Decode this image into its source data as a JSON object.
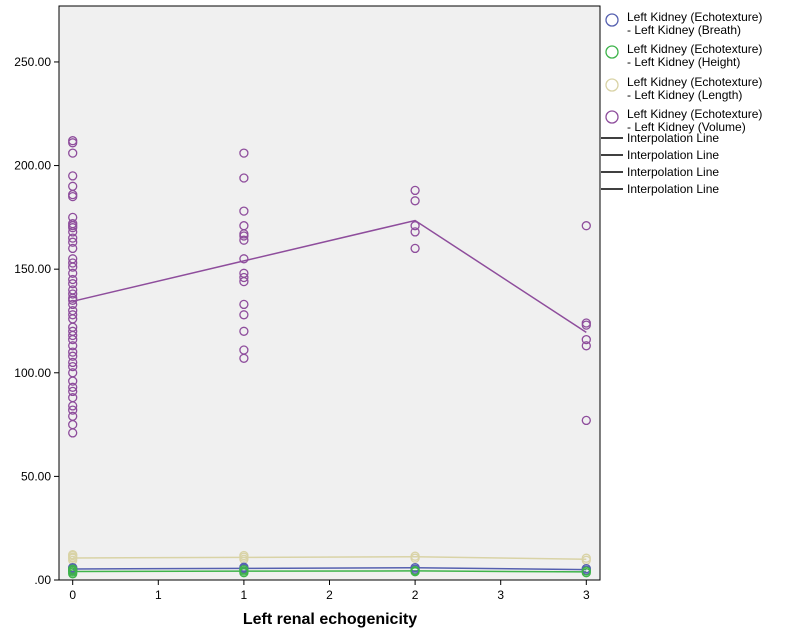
{
  "chart_data": {
    "type": "scatter",
    "title": "",
    "xlabel": "Left renal echogenicity",
    "ylabel": "",
    "x_tick_labels": [
      "0",
      "1",
      "1",
      "2",
      "2",
      "3",
      "3"
    ],
    "x_tick_values": [
      0,
      0.5,
      1,
      1.5,
      2,
      2.5,
      3
    ],
    "x_range": [
      -0.08,
      3.08
    ],
    "y_tick_labels": [
      ".00",
      "50.00",
      "100.00",
      "150.00",
      "200.00",
      "250.00"
    ],
    "y_tick_values": [
      0,
      50,
      100,
      150,
      200,
      250
    ],
    "ylim": [
      0,
      277
    ],
    "grid": false,
    "legend_position": "right",
    "series": [
      {
        "name": "Left Kidney (Echotexture) - Left Kidney (Breath)",
        "label_lines": [
          "Left Kidney (Echotexture)",
          "- Left Kidney (Breath)"
        ],
        "color": "#5560b0",
        "points": [
          [
            0,
            4.5
          ],
          [
            0,
            5
          ],
          [
            0,
            5.5
          ],
          [
            0,
            6
          ],
          [
            0,
            4.8
          ],
          [
            1,
            5
          ],
          [
            1,
            5.6
          ],
          [
            1,
            6.2
          ],
          [
            2,
            5.2
          ],
          [
            2,
            6
          ],
          [
            3,
            4.8
          ],
          [
            3,
            5.5
          ]
        ],
        "line": [
          [
            0,
            5.3
          ],
          [
            1,
            5.6
          ],
          [
            2,
            5.9
          ],
          [
            3,
            5.0
          ]
        ]
      },
      {
        "name": "Left Kidney (Echotexture) - Left Kidney (Height)",
        "label_lines": [
          "Left Kidney (Echotexture)",
          "- Left Kidney (Height)"
        ],
        "color": "#3db34a",
        "points": [
          [
            0,
            3
          ],
          [
            0,
            3.8
          ],
          [
            0,
            4.5
          ],
          [
            0,
            5.2
          ],
          [
            1,
            3.5
          ],
          [
            1,
            4.3
          ],
          [
            1,
            5
          ],
          [
            2,
            4
          ],
          [
            2,
            4.6
          ],
          [
            3,
            3.5
          ],
          [
            3,
            4.3
          ]
        ],
        "line": [
          [
            0,
            4.1
          ],
          [
            1,
            4.3
          ],
          [
            2,
            4.4
          ],
          [
            3,
            3.9
          ]
        ]
      },
      {
        "name": "Left Kidney (Echotexture) - Left Kidney (Length)",
        "label_lines": [
          "Left Kidney (Echotexture)",
          "- Left Kidney (Length)"
        ],
        "color": "#d9d3a6",
        "points": [
          [
            0,
            9.5
          ],
          [
            0,
            10.5
          ],
          [
            0,
            11
          ],
          [
            0,
            11.8
          ],
          [
            0,
            12.2
          ],
          [
            1,
            10
          ],
          [
            1,
            11
          ],
          [
            1,
            11.8
          ],
          [
            2,
            10.5
          ],
          [
            2,
            11.5
          ],
          [
            3,
            9.5
          ],
          [
            3,
            10.5
          ]
        ],
        "line": [
          [
            0,
            10.6
          ],
          [
            1,
            10.9
          ],
          [
            2,
            11.2
          ],
          [
            3,
            10.0
          ]
        ]
      },
      {
        "name": "Left Kidney (Echotexture) - Left Kidney (Volume)",
        "label_lines": [
          "Left Kidney (Echotexture)",
          "- Left Kidney (Volume)"
        ],
        "color": "#8e4d9c",
        "points": [
          [
            0,
            212
          ],
          [
            0,
            211
          ],
          [
            0,
            206
          ],
          [
            0,
            195
          ],
          [
            0,
            190
          ],
          [
            0,
            186
          ],
          [
            0,
            185
          ],
          [
            0,
            175
          ],
          [
            0,
            172
          ],
          [
            0,
            171
          ],
          [
            0,
            170
          ],
          [
            0,
            168
          ],
          [
            0,
            165
          ],
          [
            0,
            163
          ],
          [
            0,
            160
          ],
          [
            0,
            155
          ],
          [
            0,
            153
          ],
          [
            0,
            151
          ],
          [
            0,
            148
          ],
          [
            0,
            145
          ],
          [
            0,
            143
          ],
          [
            0,
            140
          ],
          [
            0,
            138
          ],
          [
            0,
            136
          ],
          [
            0,
            135
          ],
          [
            0,
            133
          ],
          [
            0,
            130
          ],
          [
            0,
            128
          ],
          [
            0,
            126
          ],
          [
            0,
            122
          ],
          [
            0,
            120
          ],
          [
            0,
            118
          ],
          [
            0,
            116
          ],
          [
            0,
            113
          ],
          [
            0,
            110
          ],
          [
            0,
            108
          ],
          [
            0,
            105
          ],
          [
            0,
            103
          ],
          [
            0,
            100
          ],
          [
            0,
            96
          ],
          [
            0,
            93
          ],
          [
            0,
            91
          ],
          [
            0,
            88
          ],
          [
            0,
            84
          ],
          [
            0,
            82
          ],
          [
            0,
            79
          ],
          [
            0,
            75
          ],
          [
            0,
            71
          ],
          [
            1,
            206
          ],
          [
            1,
            194
          ],
          [
            1,
            178
          ],
          [
            1,
            171
          ],
          [
            1,
            167
          ],
          [
            1,
            166
          ],
          [
            1,
            164
          ],
          [
            1,
            155
          ],
          [
            1,
            148
          ],
          [
            1,
            146
          ],
          [
            1,
            144
          ],
          [
            1,
            133
          ],
          [
            1,
            128
          ],
          [
            1,
            120
          ],
          [
            1,
            111
          ],
          [
            1,
            107
          ],
          [
            2,
            188
          ],
          [
            2,
            183
          ],
          [
            2,
            171
          ],
          [
            2,
            168
          ],
          [
            2,
            160
          ],
          [
            3,
            171
          ],
          [
            3,
            124
          ],
          [
            3,
            123
          ],
          [
            3,
            116
          ],
          [
            3,
            113
          ],
          [
            3,
            77
          ]
        ],
        "line": [
          [
            0,
            134.5
          ],
          [
            1,
            154
          ],
          [
            2,
            173.5
          ],
          [
            3,
            119.5
          ]
        ]
      }
    ],
    "interpolation_lines": [
      "Interpolation Line",
      "Interpolation Line",
      "Interpolation Line",
      "Interpolation Line"
    ]
  }
}
